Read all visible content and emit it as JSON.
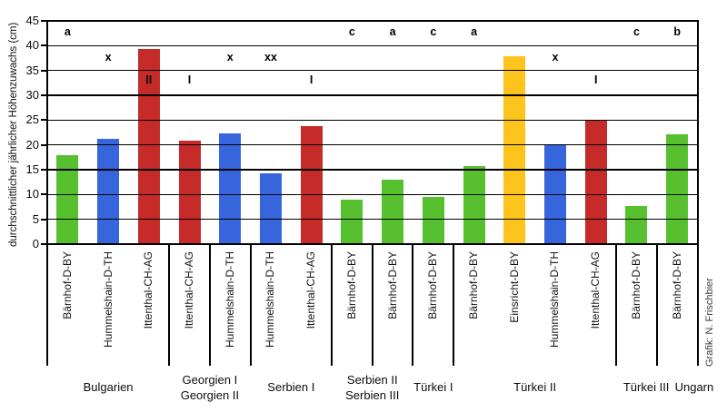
{
  "credit": "Grafik: N. Frischbier",
  "chart_data": {
    "type": "bar",
    "title": "",
    "xlabel": "",
    "ylabel": "durchschnittlicher jährlicher Höhenzuwachs (cm)",
    "ylim": [
      0,
      45
    ],
    "ytick_step": 5,
    "grid": true,
    "legend": "none",
    "site_colors": {
      "Bärnhof-D-BY": "#57c02f",
      "Hummelshain-D-TH": "#3765dc",
      "Ittenthal-CH-AG": "#c52c29",
      "Einsricht-D-BY": "#fcc41c"
    },
    "annotation_level_values": {
      "1": 42.6,
      "2": 37.5,
      "3": 32.9
    },
    "groups": [
      {
        "name": "Bulgarien",
        "bars": [
          {
            "site": "Bärnhof-D-BY",
            "value": 17.9,
            "annotation": {
              "text": "a",
              "level": 1
            }
          },
          {
            "site": "Hummelshain-D-TH",
            "value": 21.2,
            "annotation": {
              "text": "x",
              "level": 2
            }
          },
          {
            "site": "Ittenthal-CH-AG",
            "value": 39.3,
            "annotation": {
              "text": "II",
              "level": 3
            }
          }
        ]
      },
      {
        "name": "Georgien I",
        "bars": [
          {
            "site": "Ittenthal-CH-AG",
            "value": 20.9,
            "annotation": {
              "text": "I",
              "level": 3
            }
          }
        ]
      },
      {
        "name": "Georgien II",
        "bars": [
          {
            "site": "Hummelshain-D-TH",
            "value": 22.3,
            "annotation": {
              "text": "x",
              "level": 2
            }
          }
        ]
      },
      {
        "name": "Serbien I",
        "bars": [
          {
            "site": "Hummelshain-D-TH",
            "value": 14.3,
            "annotation": {
              "text": "xx",
              "level": 2
            }
          },
          {
            "site": "Ittenthal-CH-AG",
            "value": 23.8,
            "annotation": {
              "text": "I",
              "level": 3
            }
          }
        ]
      },
      {
        "name": "Serbien II",
        "bars": [
          {
            "site": "Bärnhof-D-BY",
            "value": 8.9,
            "annotation": {
              "text": "c",
              "level": 1
            }
          }
        ]
      },
      {
        "name": "Serbien III",
        "bars": [
          {
            "site": "Bärnhof-D-BY",
            "value": 13.0,
            "annotation": {
              "text": "a",
              "level": 1
            }
          }
        ]
      },
      {
        "name": "Türkei I",
        "bars": [
          {
            "site": "Bärnhof-D-BY",
            "value": 9.6,
            "annotation": {
              "text": "c",
              "level": 1
            }
          }
        ]
      },
      {
        "name": "Türkei II",
        "bars": [
          {
            "site": "Bärnhof-D-BY",
            "value": 15.8,
            "annotation": {
              "text": "a",
              "level": 1
            }
          },
          {
            "site": "Einsricht-D-BY",
            "value": 37.8,
            "annotation": null
          },
          {
            "site": "Hummelshain-D-TH",
            "value": 20.0,
            "annotation": {
              "text": "x",
              "level": 2
            }
          },
          {
            "site": "Ittenthal-CH-AG",
            "value": 25.0,
            "annotation": {
              "text": "I",
              "level": 3
            }
          }
        ]
      },
      {
        "name": "Türkei III",
        "bars": [
          {
            "site": "Bärnhof-D-BY",
            "value": 7.7,
            "annotation": {
              "text": "c",
              "level": 1
            }
          }
        ]
      },
      {
        "name": "Ungarn",
        "bars": [
          {
            "site": "Bärnhof-D-BY",
            "value": 22.1,
            "annotation": {
              "text": "b",
              "level": 1
            }
          }
        ]
      }
    ],
    "x_labels": [
      {
        "lines": [
          "Bulgarien"
        ],
        "center_slot": 1.5
      },
      {
        "lines": [
          "Georgien I",
          "Georgien II"
        ],
        "center_slot": 4
      },
      {
        "lines": [
          "Serbien I"
        ],
        "center_slot": 6
      },
      {
        "lines": [
          "Serbien II",
          "Serbien III"
        ],
        "center_slot": 8
      },
      {
        "lines": [
          "Türkei I"
        ],
        "center_slot": 9.5
      },
      {
        "lines": [
          "Türkei II"
        ],
        "center_slot": 12
      },
      {
        "lines": [
          "Türkei III"
        ],
        "center_slot": 14.74
      },
      {
        "lines": [
          "Ungarn"
        ],
        "center_slot": 15.92
      }
    ]
  }
}
